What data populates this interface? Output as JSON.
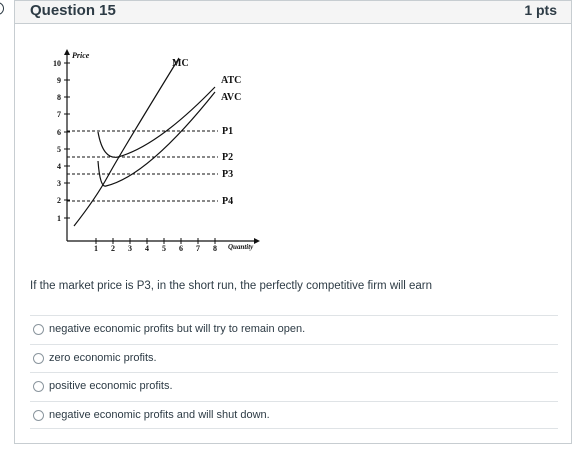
{
  "question": {
    "title": "Question 15",
    "points": "1 pts"
  },
  "graph": {
    "y_axis_label": "Price",
    "x_axis_label": "Quantity",
    "y_ticks": [
      "1",
      "2",
      "3",
      "4",
      "5",
      "6",
      "7",
      "8",
      "9",
      "10"
    ],
    "x_ticks": [
      "1",
      "2",
      "3",
      "4",
      "5",
      "6",
      "7",
      "8"
    ],
    "curve_labels": {
      "mc": "MC",
      "atc": "ATC",
      "avc": "AVC"
    },
    "price_labels": {
      "p1": "P1",
      "p2": "P2",
      "p3": "P3",
      "p4": "P4"
    }
  },
  "prompt": "If the market price is P3, in the short run, the perfectly competitive firm will earn",
  "answers": [
    "negative economic profits but will try to remain open.",
    "zero economic profits.",
    "positive economic profits.",
    "negative economic profits and will shut down."
  ]
}
